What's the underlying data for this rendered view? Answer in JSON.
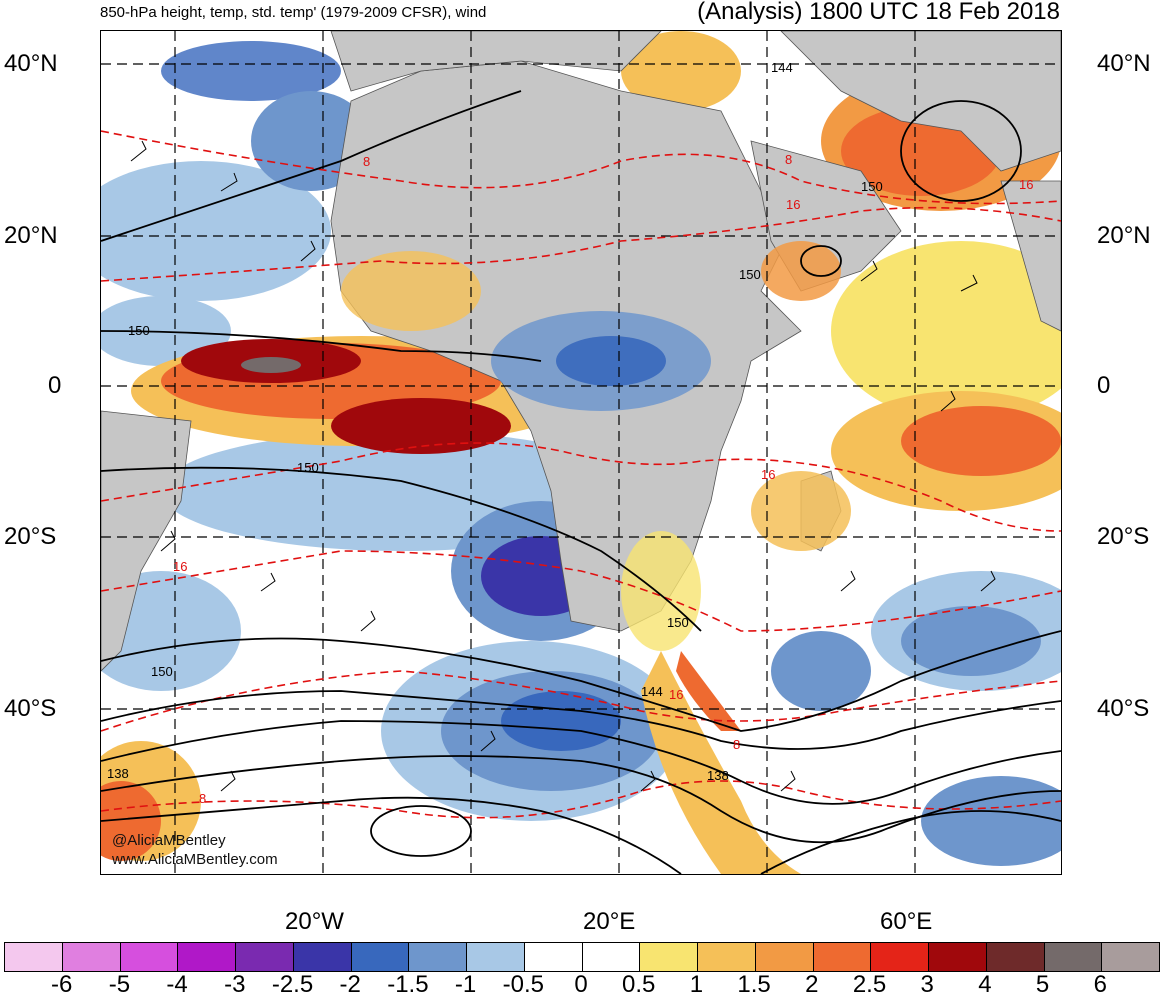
{
  "header": {
    "left_title": "850-hPa height, temp, std. temp' (1979-2009 CFSR), wind",
    "right_title": "(Analysis) 1800 UTC 18 Feb 2018"
  },
  "latitude_labels": [
    "40°N",
    "20°N",
    "0",
    "20°S",
    "40°S"
  ],
  "longitude_labels": [
    "20°W",
    "20°E",
    "60°E"
  ],
  "contour_labels": {
    "height": [
      "150",
      "150",
      "150",
      "150",
      "150",
      "150",
      "144",
      "144",
      "138",
      "138"
    ],
    "temperature": [
      "8",
      "8",
      "16",
      "16",
      "16",
      "16",
      "16",
      "8",
      "8"
    ]
  },
  "credits": {
    "twitter": "@AliciaMBentley",
    "website": "www.AliciaMBentley.com"
  },
  "legend": {
    "labels": [
      "-6",
      "-5",
      "-4",
      "-3",
      "-2.5",
      "-2",
      "-1.5",
      "-1",
      "-0.5",
      "0",
      "0.5",
      "1",
      "1.5",
      "2",
      "2.5",
      "3",
      "4",
      "5",
      "6"
    ],
    "colors": [
      "#f4c8ee",
      "#e07fe0",
      "#d64fde",
      "#b018c8",
      "#7a2ab0",
      "#3a35a8",
      "#3868bd",
      "#6e96cc",
      "#a8c8e6",
      "#ffffff",
      "#ffffff",
      "#f8e470",
      "#f5c058",
      "#f29a44",
      "#ee6a30",
      "#e42418",
      "#a0080c",
      "#6e2a2a",
      "#746a6a",
      "#a89c9c"
    ]
  },
  "colors": {
    "land": "#c6c6c6",
    "height_contour": "#000000",
    "temp_contour": "#e01010"
  }
}
